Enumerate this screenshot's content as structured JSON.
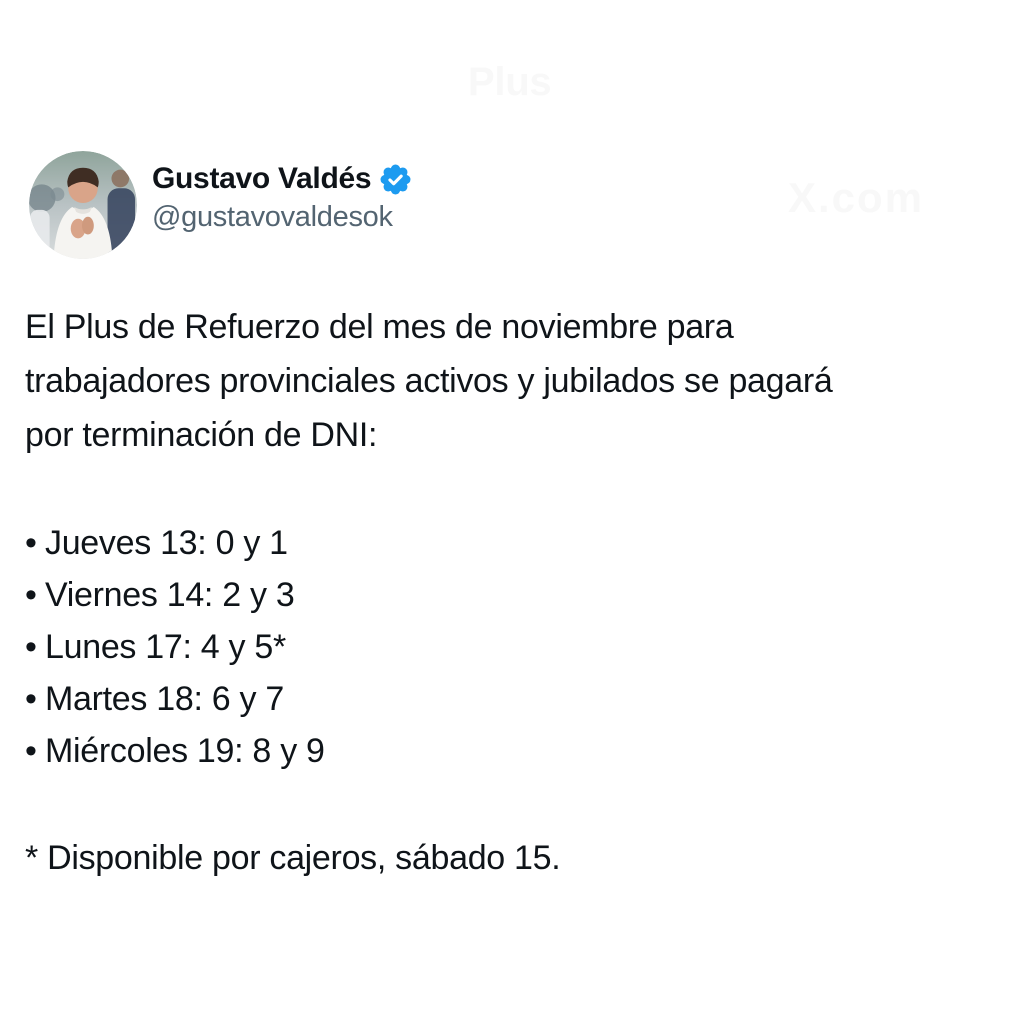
{
  "colors": {
    "background": "#ffffff",
    "text": "#0f1419",
    "handle": "#536471",
    "badge": "#1d9bf0",
    "watermark": "#f8f8f8"
  },
  "watermarks": {
    "top_left": "Plus",
    "right": "X.com"
  },
  "header": {
    "display_name": "Gustavo Valdés",
    "handle": "@gustavovaldesok",
    "verified_icon": "verified-badge-icon"
  },
  "post": {
    "intro_lines": [
      "El Plus de Refuerzo del mes de noviembre para",
      "trabajadores provinciales activos y jubilados se pagará",
      "por terminación de DNI:"
    ],
    "bullet_char": "•",
    "schedule": [
      "Jueves 13: 0 y 1",
      "Viernes 14: 2 y 3",
      "Lunes 17: 4 y 5*",
      "Martes 18: 6 y 7",
      "Miércoles 19: 8 y 9"
    ],
    "footnote": "* Disponible por cajeros, sábado 15."
  }
}
